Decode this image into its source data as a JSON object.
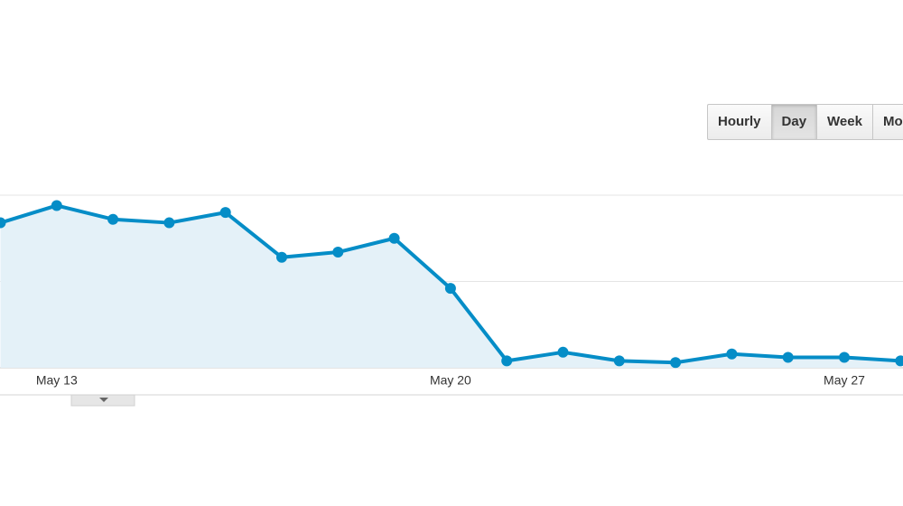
{
  "buttons": [
    "Hourly",
    "Day",
    "Week",
    "Month"
  ],
  "selected_button": 1,
  "chart_data": {
    "type": "line",
    "categories": [
      null,
      "May 13",
      null,
      null,
      null,
      null,
      null,
      null,
      "May 20",
      null,
      null,
      null,
      null,
      null,
      null,
      "May 27",
      null
    ],
    "series": [
      {
        "color": "#058dc7",
        "values": [
          84,
          94,
          86,
          84,
          90,
          64,
          67,
          75,
          46,
          4,
          9,
          4,
          3,
          8,
          6,
          6,
          4
        ]
      }
    ],
    "area": true,
    "ylim": [
      0,
      100
    ],
    "grid_lines": [
      50,
      100
    ]
  }
}
